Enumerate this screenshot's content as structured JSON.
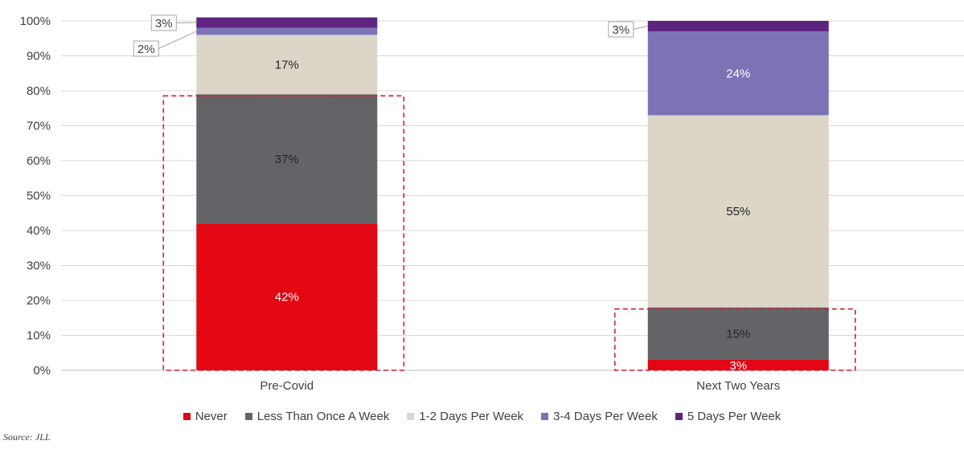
{
  "chart_data": {
    "type": "bar",
    "stacked": true,
    "categories": [
      "Pre-Covid",
      "Next Two Years"
    ],
    "series": [
      {
        "name": "Never",
        "color": "#E30613",
        "values": [
          42,
          3
        ],
        "labels": [
          "42%",
          "3%"
        ]
      },
      {
        "name": "Less Than Once A Week",
        "color": "#636368",
        "values": [
          37,
          15
        ],
        "labels": [
          "37%",
          "15%"
        ]
      },
      {
        "name": "1-2 Days Per Week",
        "color": "#DCD6C8",
        "values": [
          17,
          55
        ],
        "labels": [
          "17%",
          "55%"
        ]
      },
      {
        "name": "3-4 Days Per Week",
        "color": "#7C73B6",
        "values": [
          2,
          24
        ],
        "labels": [
          "2%",
          "24%"
        ]
      },
      {
        "name": "5 Days Per Week",
        "color": "#5E2480",
        "values": [
          3,
          3
        ],
        "labels": [
          "3%",
          "3%"
        ]
      }
    ],
    "ylim": [
      0,
      100
    ],
    "yticks": [
      "0%",
      "10%",
      "20%",
      "30%",
      "40%",
      "50%",
      "60%",
      "70%",
      "80%",
      "90%",
      "100%"
    ],
    "grid": true,
    "legend_position": "bottom"
  },
  "source": "Source: JLL"
}
